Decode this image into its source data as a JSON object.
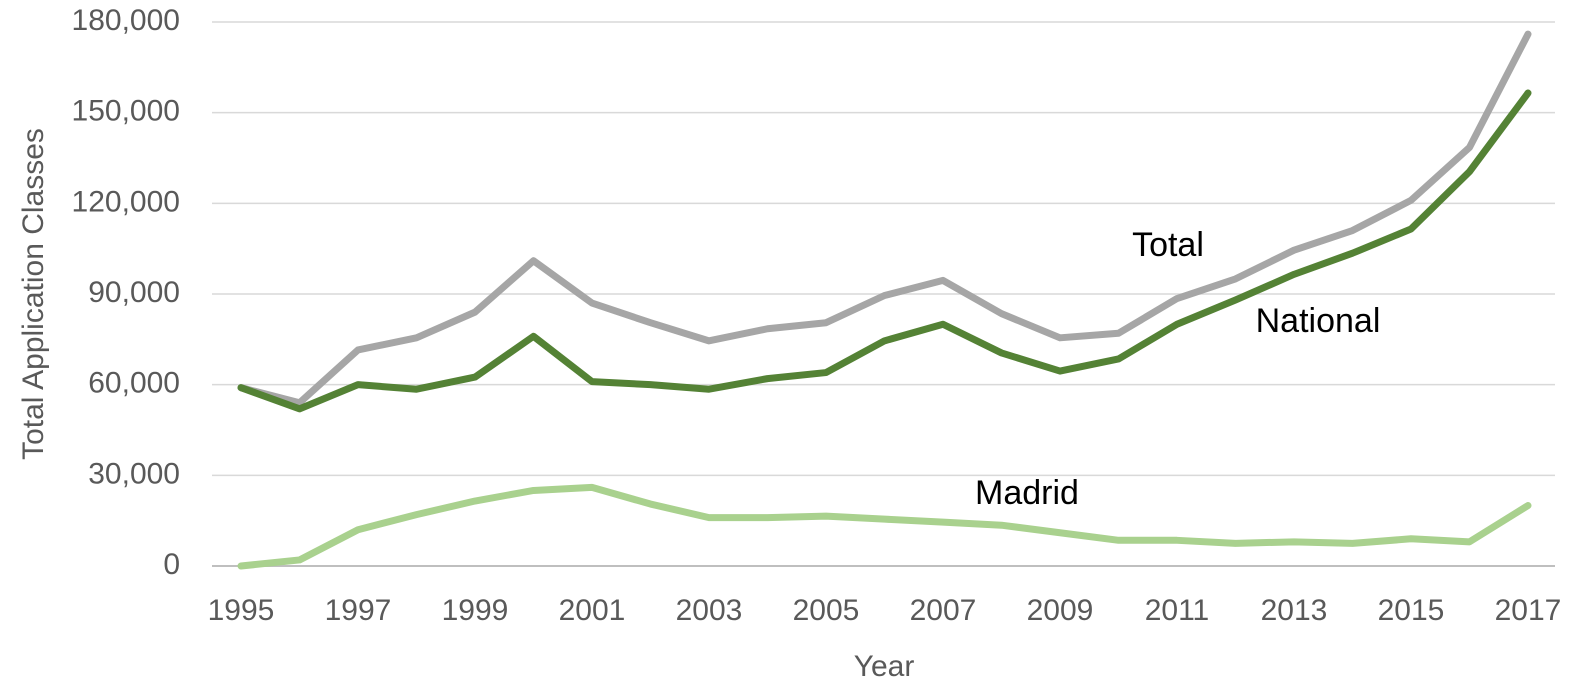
{
  "chart_data": {
    "type": "line",
    "x_label": "Year",
    "y_label": "Total Application Classes",
    "x": [
      1995,
      1996,
      1997,
      1998,
      1999,
      2000,
      2001,
      2002,
      2003,
      2004,
      2005,
      2006,
      2007,
      2008,
      2009,
      2010,
      2011,
      2012,
      2013,
      2014,
      2015,
      2016,
      2017
    ],
    "series": [
      {
        "name": "Total",
        "color": "#a6a6a6",
        "values": [
          59000,
          54000,
          71500,
          75500,
          84000,
          101000,
          87000,
          80500,
          74500,
          78500,
          80500,
          89500,
          94500,
          83500,
          75500,
          77000,
          88500,
          95000,
          104500,
          111000,
          121000,
          138500,
          176000
        ]
      },
      {
        "name": "National",
        "color": "#548235",
        "values": [
          59000,
          52000,
          60000,
          58500,
          62500,
          76000,
          61000,
          60000,
          58500,
          62000,
          64000,
          74500,
          80000,
          70500,
          64500,
          68500,
          80000,
          88000,
          96500,
          103500,
          111500,
          130500,
          156500
        ]
      },
      {
        "name": "Madrid",
        "color": "#a9d18e",
        "values": [
          0,
          2000,
          12000,
          17000,
          21500,
          25000,
          26000,
          20500,
          16000,
          16000,
          16500,
          15500,
          14500,
          13500,
          11000,
          8500,
          8500,
          7500,
          8000,
          7500,
          9000,
          8000,
          20000
        ]
      }
    ],
    "xlim": [
      1995,
      2017
    ],
    "xticks": [
      1995,
      1997,
      1999,
      2001,
      2003,
      2005,
      2007,
      2009,
      2011,
      2013,
      2015,
      2017
    ],
    "ylim": [
      0,
      180000
    ],
    "yticks": [
      0,
      {
        "value": 30000,
        "label": "30,000"
      },
      {
        "value": 60000,
        "label": "60,000"
      },
      {
        "value": 90000,
        "label": "90,000"
      },
      {
        "value": 120000,
        "label": "120,000"
      },
      {
        "value": 150000,
        "label": "150,000"
      },
      {
        "value": 180000,
        "label": "180,000"
      }
    ],
    "grid": true
  }
}
